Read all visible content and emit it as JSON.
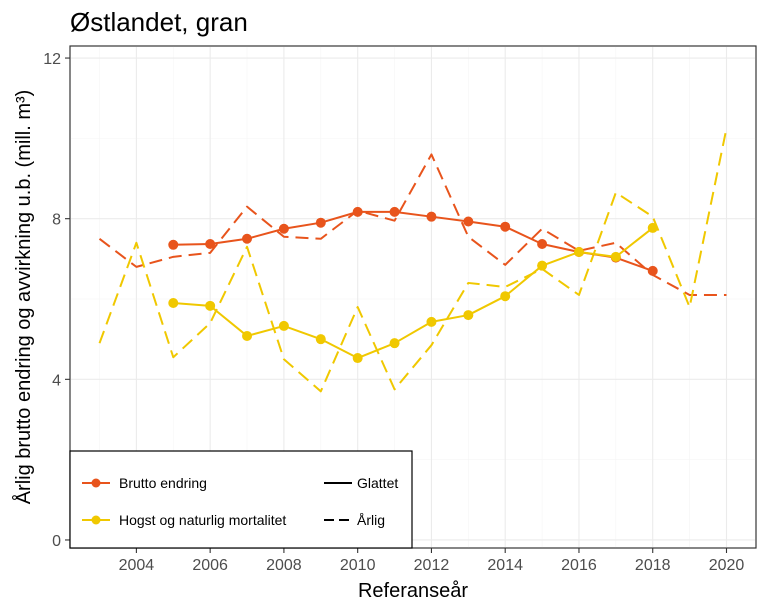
{
  "chart_data": {
    "type": "line",
    "title": "Østlandet, gran",
    "xlabel": "Referanseår",
    "ylabel": "Årlig brutto endring og avvirkning u.b. (mill. m³)",
    "xlim": [
      2002.2,
      2020.8
    ],
    "ylim": [
      -0.2,
      12.3
    ],
    "x_ticks": [
      2004,
      2006,
      2008,
      2010,
      2012,
      2014,
      2016,
      2018,
      2020
    ],
    "y_ticks": [
      0,
      4,
      8,
      12
    ],
    "grid": true,
    "legend": {
      "placement": "bottom-left",
      "color_entries": [
        {
          "label": "Brutto endring",
          "color": "#e8541c"
        },
        {
          "label": "Hogst og naturlig mortalitet",
          "color": "#f0c800"
        }
      ],
      "linetype_entries": [
        {
          "label": "Glattet",
          "dash": "solid"
        },
        {
          "label": "Årlig",
          "dash": "dashed"
        }
      ]
    },
    "series": [
      {
        "variable": "Brutto endring",
        "linetype": "Glattet",
        "color": "#e8541c",
        "markers": true,
        "x": [
          2005,
          2006,
          2007,
          2008,
          2009,
          2010,
          2011,
          2012,
          2013,
          2014,
          2015,
          2016,
          2017,
          2018
        ],
        "y": [
          7.35,
          7.37,
          7.5,
          7.75,
          7.9,
          8.17,
          8.17,
          8.05,
          7.93,
          7.8,
          7.37,
          7.17,
          7.03,
          6.7
        ]
      },
      {
        "variable": "Brutto endring",
        "linetype": "Årlig",
        "color": "#e8541c",
        "markers": false,
        "x": [
          2003,
          2004,
          2005,
          2006,
          2007,
          2008,
          2009,
          2010,
          2011,
          2012,
          2013,
          2014,
          2015,
          2016,
          2017,
          2018,
          2019,
          2020
        ],
        "y": [
          7.5,
          6.8,
          7.05,
          7.15,
          8.3,
          7.55,
          7.5,
          8.2,
          7.95,
          9.6,
          7.55,
          6.85,
          7.75,
          7.2,
          7.4,
          6.6,
          6.1,
          6.1
        ]
      },
      {
        "variable": "Hogst og naturlig mortalitet",
        "linetype": "Glattet",
        "color": "#f0c800",
        "markers": true,
        "x": [
          2005,
          2006,
          2007,
          2008,
          2009,
          2010,
          2011,
          2012,
          2013,
          2014,
          2015,
          2016,
          2017,
          2018
        ],
        "y": [
          5.9,
          5.83,
          5.08,
          5.33,
          5.0,
          4.53,
          4.9,
          5.43,
          5.6,
          6.07,
          6.83,
          7.17,
          7.05,
          7.77
        ]
      },
      {
        "variable": "Hogst og naturlig mortalitet",
        "linetype": "Årlig",
        "color": "#f0c800",
        "markers": false,
        "x": [
          2003,
          2004,
          2005,
          2006,
          2007,
          2008,
          2009,
          2010,
          2011,
          2012,
          2013,
          2014,
          2015,
          2016,
          2017,
          2018,
          2019,
          2020
        ],
        "y": [
          4.9,
          7.4,
          4.55,
          5.4,
          7.3,
          4.5,
          3.7,
          5.8,
          3.75,
          4.85,
          6.4,
          6.3,
          6.75,
          6.1,
          8.65,
          8.05,
          5.8,
          10.25
        ]
      }
    ]
  }
}
